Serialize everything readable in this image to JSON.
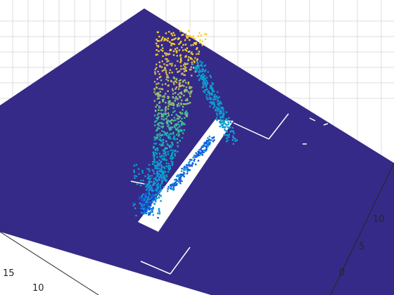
{
  "chart_data": {
    "type": "scatter",
    "view": "3d-perspective",
    "title": "",
    "xlabel": "",
    "ylabel": "",
    "zlabel": "",
    "grid": true,
    "colors": {
      "surface": "#352a87",
      "background": "#ffffff",
      "grid": "#dcdcdc",
      "colormap": [
        "#0f5ce1",
        "#1496d4",
        "#06a7c6",
        "#38b99e",
        "#92bf73",
        "#d9ba56",
        "#fcce2e"
      ]
    },
    "axes": {
      "left_axis_ticks": [
        "10",
        "15"
      ],
      "right_axis_ticks": [
        "0",
        "5",
        "10"
      ]
    }
  }
}
